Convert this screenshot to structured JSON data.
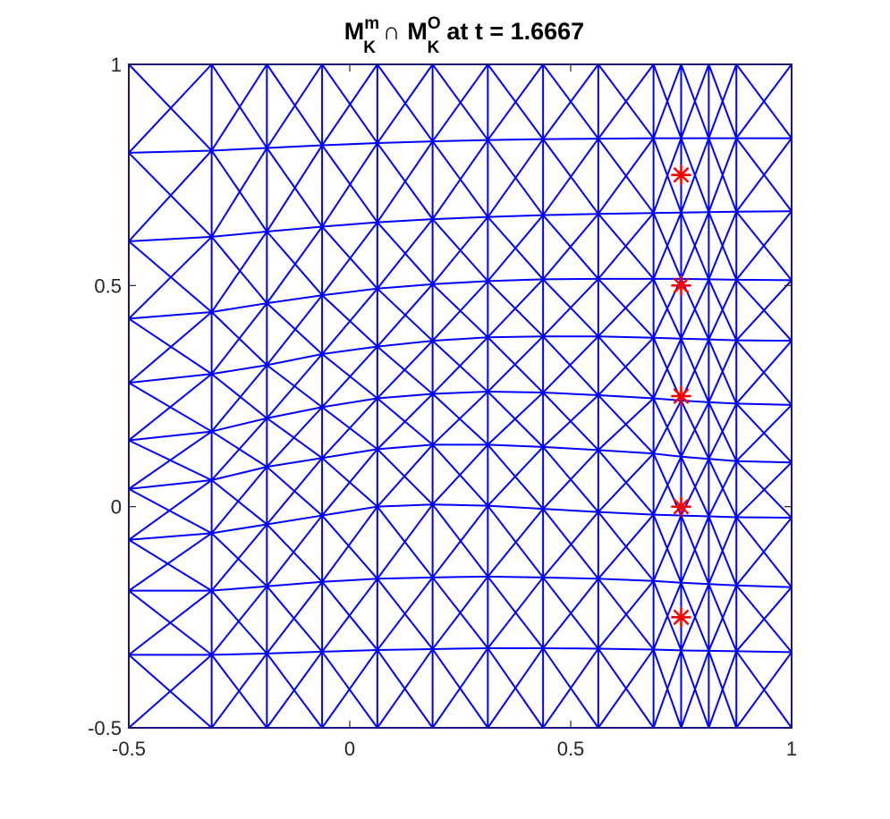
{
  "chart_data": {
    "type": "scatter",
    "title": {
      "base1": "M",
      "sup1": "m",
      "sub1": "K",
      "operator": "∩",
      "base2": "M",
      "sup2": "O",
      "sub2": "K",
      "rest": "at t = 1.6667"
    },
    "xlabel": "",
    "ylabel": "",
    "xlim": [
      -0.5,
      1
    ],
    "ylim": [
      -0.5,
      1
    ],
    "xticks": [
      -0.5,
      0,
      0.5,
      1
    ],
    "xtick_labels": [
      "-0.5",
      "0",
      "0.5",
      "1"
    ],
    "yticks": [
      -0.5,
      0,
      0.5,
      1
    ],
    "ytick_labels": [
      "-0.5",
      "0",
      "0.5",
      "1"
    ],
    "grid": false,
    "mesh_color": "#0000ff",
    "marker_color": "#ff0000",
    "mesh": {
      "x_columns": [
        -0.5,
        -0.3125,
        -0.1875,
        -0.0625,
        0.0625,
        0.1875,
        0.3125,
        0.4375,
        0.5625,
        0.6875,
        0.75,
        0.8125,
        0.875,
        1.0
      ],
      "rows": [
        [
          -0.5,
          -0.5,
          -0.5,
          -0.5,
          -0.5,
          -0.5,
          -0.5,
          -0.5,
          -0.5,
          -0.5,
          -0.5,
          -0.5,
          -0.5,
          -0.5
        ],
        [
          -0.335,
          -0.335,
          -0.332,
          -0.328,
          -0.324,
          -0.322,
          -0.32,
          -0.32,
          -0.321,
          -0.323,
          -0.325,
          -0.326,
          -0.327,
          -0.329
        ],
        [
          -0.19,
          -0.19,
          -0.18,
          -0.17,
          -0.163,
          -0.16,
          -0.158,
          -0.16,
          -0.163,
          -0.168,
          -0.172,
          -0.175,
          -0.178,
          -0.182
        ],
        [
          -0.075,
          -0.06,
          -0.04,
          -0.02,
          0.0,
          0.005,
          0.002,
          -0.005,
          -0.012,
          -0.018,
          -0.02,
          -0.022,
          -0.024,
          -0.025
        ],
        [
          0.04,
          0.06,
          0.09,
          0.11,
          0.13,
          0.14,
          0.14,
          0.135,
          0.128,
          0.12,
          0.113,
          0.108,
          0.103,
          0.1
        ],
        [
          0.15,
          0.17,
          0.2,
          0.225,
          0.245,
          0.255,
          0.26,
          0.258,
          0.252,
          0.245,
          0.24,
          0.236,
          0.233,
          0.23
        ],
        [
          0.28,
          0.3,
          0.32,
          0.345,
          0.362,
          0.375,
          0.383,
          0.385,
          0.385,
          0.382,
          0.38,
          0.378,
          0.376,
          0.375
        ],
        [
          0.425,
          0.44,
          0.46,
          0.478,
          0.493,
          0.503,
          0.51,
          0.514,
          0.515,
          0.515,
          0.515,
          0.514,
          0.513,
          0.512
        ],
        [
          0.6,
          0.61,
          0.622,
          0.633,
          0.643,
          0.65,
          0.655,
          0.659,
          0.662,
          0.664,
          0.665,
          0.666,
          0.667,
          0.668
        ],
        [
          0.8,
          0.805,
          0.811,
          0.817,
          0.822,
          0.826,
          0.829,
          0.831,
          0.832,
          0.833,
          0.833,
          0.833,
          0.833,
          0.833
        ],
        [
          1.0,
          1.0,
          1.0,
          1.0,
          1.0,
          1.0,
          1.0,
          1.0,
          1.0,
          1.0,
          1.0,
          1.0,
          1.0,
          1.0
        ]
      ]
    },
    "series": [
      {
        "x": [
          0.75,
          0.75,
          0.75,
          0.75,
          0.75
        ],
        "y": [
          0.75,
          0.5,
          0.25,
          0.0,
          -0.25
        ]
      }
    ]
  }
}
